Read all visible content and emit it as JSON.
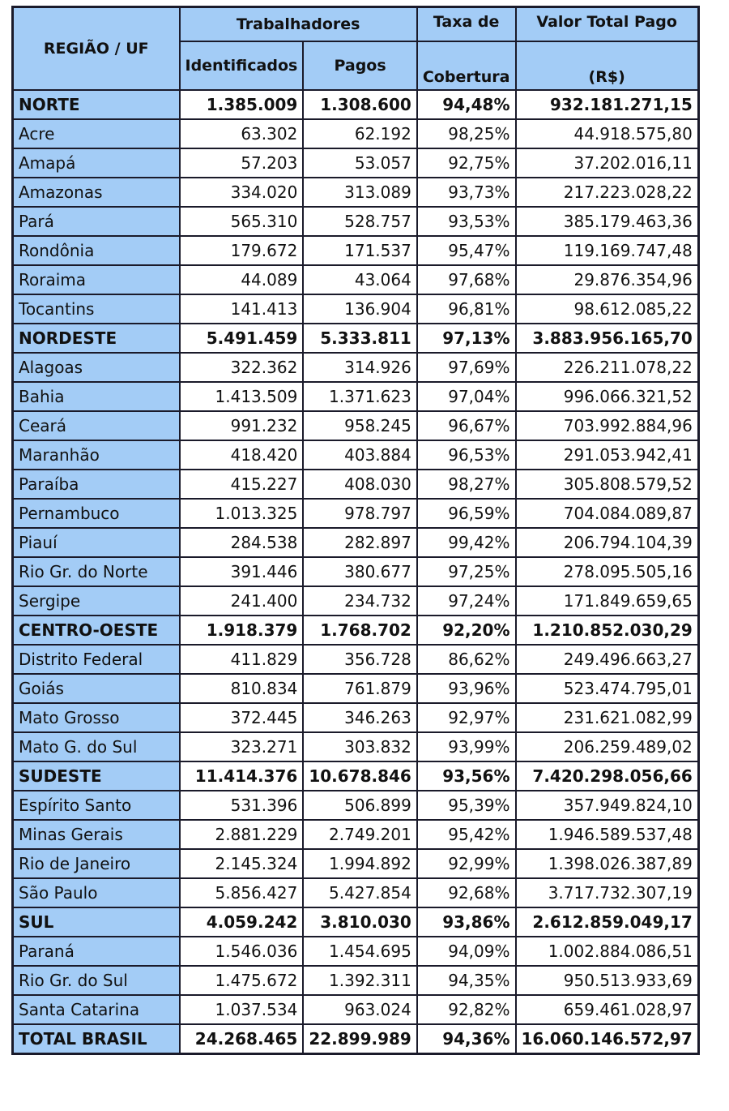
{
  "header": {
    "region": "REGIÃO / UF",
    "workers": "Trabalhadores",
    "identified": "Identificados",
    "paid": "Pagos",
    "rate1": "Taxa de",
    "rate2": "Cobertura",
    "value1": "Valor Total  Pago",
    "value2": "(R$)"
  },
  "rows": [
    [
      "NORTE",
      "1.385.009",
      "1.308.600",
      "94,48%",
      "932.181.271,15",
      1
    ],
    [
      "Acre",
      "63.302",
      "62.192",
      "98,25%",
      "44.918.575,80",
      0
    ],
    [
      "Amapá",
      "57.203",
      "53.057",
      "92,75%",
      "37.202.016,11",
      0
    ],
    [
      "Amazonas",
      "334.020",
      "313.089",
      "93,73%",
      "217.223.028,22",
      0
    ],
    [
      "Pará",
      "565.310",
      "528.757",
      "93,53%",
      "385.179.463,36",
      0
    ],
    [
      "Rondônia",
      "179.672",
      "171.537",
      "95,47%",
      "119.169.747,48",
      0
    ],
    [
      "Roraima",
      "44.089",
      "43.064",
      "97,68%",
      "29.876.354,96",
      0
    ],
    [
      "Tocantins",
      "141.413",
      "136.904",
      "96,81%",
      "98.612.085,22",
      0
    ],
    [
      "NORDESTE",
      "5.491.459",
      "5.333.811",
      "97,13%",
      "3.883.956.165,70",
      1
    ],
    [
      "Alagoas",
      "322.362",
      "314.926",
      "97,69%",
      "226.211.078,22",
      0
    ],
    [
      "Bahia",
      "1.413.509",
      "1.371.623",
      "97,04%",
      "996.066.321,52",
      0
    ],
    [
      "Ceará",
      "991.232",
      "958.245",
      "96,67%",
      "703.992.884,96",
      0
    ],
    [
      "Maranhão",
      "418.420",
      "403.884",
      "96,53%",
      "291.053.942,41",
      0
    ],
    [
      "Paraíba",
      "415.227",
      "408.030",
      "98,27%",
      "305.808.579,52",
      0
    ],
    [
      "Pernambuco",
      "1.013.325",
      "978.797",
      "96,59%",
      "704.084.089,87",
      0
    ],
    [
      "Piauí",
      "284.538",
      "282.897",
      "99,42%",
      "206.794.104,39",
      0
    ],
    [
      "Rio Gr. do Norte",
      "391.446",
      "380.677",
      "97,25%",
      "278.095.505,16",
      0
    ],
    [
      "Sergipe",
      "241.400",
      "234.732",
      "97,24%",
      "171.849.659,65",
      0
    ],
    [
      "CENTRO-OESTE",
      "1.918.379",
      "1.768.702",
      "92,20%",
      "1.210.852.030,29",
      1
    ],
    [
      "Distrito Federal",
      "411.829",
      "356.728",
      "86,62%",
      "249.496.663,27",
      0
    ],
    [
      "Goiás",
      "810.834",
      "761.879",
      "93,96%",
      "523.474.795,01",
      0
    ],
    [
      "Mato Grosso",
      "372.445",
      "346.263",
      "92,97%",
      "231.621.082,99",
      0
    ],
    [
      "Mato G. do Sul",
      "323.271",
      "303.832",
      "93,99%",
      "206.259.489,02",
      0
    ],
    [
      "SUDESTE",
      "11.414.376",
      "10.678.846",
      "93,56%",
      "7.420.298.056,66",
      1
    ],
    [
      "Espírito Santo",
      "531.396",
      "506.899",
      "95,39%",
      "357.949.824,10",
      0
    ],
    [
      "Minas Gerais",
      "2.881.229",
      "2.749.201",
      "95,42%",
      "1.946.589.537,48",
      0
    ],
    [
      "Rio de Janeiro",
      "2.145.324",
      "1.994.892",
      "92,99%",
      "1.398.026.387,89",
      0
    ],
    [
      "São Paulo",
      "5.856.427",
      "5.427.854",
      "92,68%",
      "3.717.732.307,19",
      0
    ],
    [
      "SUL",
      "4.059.242",
      "3.810.030",
      "93,86%",
      "2.612.859.049,17",
      1
    ],
    [
      "Paraná",
      "1.546.036",
      "1.454.695",
      "94,09%",
      "1.002.884.086,51",
      0
    ],
    [
      "Rio Gr. do Sul",
      "1.475.672",
      "1.392.311",
      "94,35%",
      "950.513.933,69",
      0
    ],
    [
      "Santa Catarina",
      "1.037.534",
      "963.024",
      "92,82%",
      "659.461.028,97",
      0
    ],
    [
      "TOTAL BRASIL",
      "24.268.465",
      "22.899.989",
      "94,36%",
      "16.060.146.572,97",
      1
    ]
  ]
}
